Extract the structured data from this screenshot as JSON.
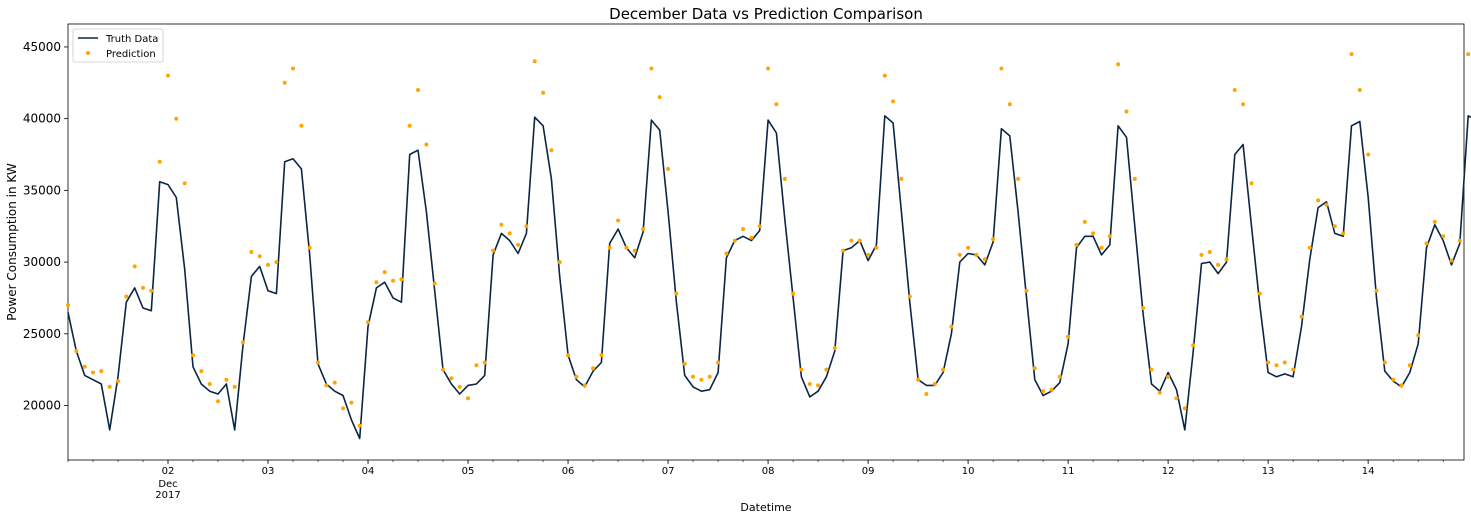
{
  "chart_data": {
    "type": "line",
    "title": "December Data vs Prediction Comparison",
    "xlabel": "Datetime",
    "ylabel": "Power Consumption in KW",
    "ylim": [
      16200,
      46600
    ],
    "xlim": [
      "2017-12-01 00:00",
      "2017-12-14 23:00"
    ],
    "y_ticks": [
      20000,
      25000,
      30000,
      35000,
      40000,
      45000
    ],
    "x_ticks": [
      {
        "value": "2017-12-02",
        "label": "02",
        "sub1": "Dec",
        "sub2": "2017"
      },
      {
        "value": "2017-12-03",
        "label": "03"
      },
      {
        "value": "2017-12-04",
        "label": "04"
      },
      {
        "value": "2017-12-05",
        "label": "05"
      },
      {
        "value": "2017-12-06",
        "label": "06"
      },
      {
        "value": "2017-12-07",
        "label": "07"
      },
      {
        "value": "2017-12-08",
        "label": "08"
      },
      {
        "value": "2017-12-09",
        "label": "09"
      },
      {
        "value": "2017-12-10",
        "label": "10"
      },
      {
        "value": "2017-12-11",
        "label": "11"
      },
      {
        "value": "2017-12-12",
        "label": "12"
      },
      {
        "value": "2017-12-13",
        "label": "13"
      },
      {
        "value": "2017-12-14",
        "label": "14"
      }
    ],
    "grid": false,
    "legend_position": "top-left",
    "series": [
      {
        "name": "Truth Data",
        "style": "line",
        "color": "#0b2545",
        "hour_step": 2,
        "start": "2017-12-01 00:00",
        "values": [
          [
            26500,
            23800,
            22100,
            21800,
            21500,
            18300,
            22000,
            27200,
            28200,
            26800,
            26600,
            35600,
            35400,
            34500,
            29500,
            22700,
            21500,
            21000,
            20800,
            21500,
            18300,
            24200,
            29000,
            29700,
            28000,
            27800,
            37000,
            37200,
            36500,
            30500,
            22900,
            21500,
            21000,
            20700,
            19000,
            17700,
            25500,
            28200,
            28600,
            27500,
            27200,
            37500,
            37800,
            33500,
            28000,
            22500,
            21500,
            20800,
            21400,
            21500,
            22100,
            30500,
            32000,
            31500,
            30600,
            32000,
            40100,
            39500,
            35800,
            29000,
            23500,
            21800,
            21300,
            22400,
            23000,
            31300,
            32300,
            31000,
            30300,
            32100,
            39900,
            39200,
            33500,
            27200,
            22100,
            21300,
            21000,
            21100,
            22300,
            30300,
            31500,
            31800,
            31500,
            32200,
            39900,
            39000,
            33000,
            27500,
            22000,
            20600,
            21000,
            22000,
            23800,
            30800,
            31000,
            31500,
            30100,
            31200,
            40200,
            39700,
            33500,
            27200,
            21800,
            21400,
            21400,
            22300,
            25000,
            30000,
            30600,
            30500,
            29800,
            31400,
            39300,
            38800,
            33500,
            27600,
            21800,
            20700,
            21000,
            21600,
            24300,
            31000,
            31800,
            31800,
            30500,
            31200,
            39500,
            38700,
            32500,
            26400,
            21500,
            21000,
            22300,
            21100,
            18300,
            23700,
            29900,
            30000,
            29200,
            30000,
            37500,
            38200,
            32500,
            27000,
            22300,
            22000,
            22200,
            22000,
            25500,
            30200,
            33800,
            34200,
            32000,
            31800,
            39500,
            39800,
            34500,
            27500,
            22400,
            21700,
            21300,
            22300,
            24300,
            31000,
            32600,
            31500,
            29800,
            31300,
            40200,
            39900,
            34800,
            27000,
            21300,
            20600,
            21300,
            22400,
            24500,
            29500,
            31500,
            32000,
            31200,
            31500,
            40600,
            40000,
            34800,
            26800,
            21600,
            21200,
            21700,
            22700,
            24500,
            29800,
            31800,
            31600,
            31100,
            31500,
            40300,
            40000,
            34500,
            27400
          ]
        ]
      },
      {
        "name": "Prediction",
        "style": "dots",
        "color": "#ffa500",
        "hour_step": 2,
        "start": "2017-12-01 00:00",
        "values": [
          [
            27000,
            23800,
            22700,
            22300,
            22400,
            21300,
            21700,
            27600,
            29700,
            28200,
            28000,
            37000,
            43000,
            40000,
            35500,
            23500,
            22400,
            21500,
            20300,
            21800,
            21300,
            24400,
            30700,
            30400,
            29800,
            30000,
            42500,
            43500,
            39500,
            31000,
            23000,
            21400,
            21600,
            19800,
            20200,
            18600,
            25800,
            28600,
            29300,
            28700,
            28800,
            39500,
            42000,
            38200,
            28500,
            22500,
            21900,
            21300,
            20500,
            22800,
            23000,
            30800,
            32600,
            32000,
            31200,
            32500,
            44000,
            41800,
            37800,
            30000,
            23500,
            22000,
            21400,
            22600,
            23500,
            31000,
            32900,
            31000,
            30800,
            32300,
            43500,
            41500,
            36500,
            27800,
            22900,
            22000,
            21800,
            22000,
            23000,
            30600,
            31500,
            32300,
            31700,
            32500,
            43500,
            41000,
            35800,
            27800,
            22500,
            21500,
            21400,
            22500,
            24000,
            30800,
            31500,
            31500,
            30500,
            31000,
            43000,
            41200,
            35800,
            27600,
            21800,
            20800,
            21500,
            22500,
            25500,
            30500,
            31000,
            30500,
            30200,
            31600,
            43500,
            41000,
            35800,
            28000,
            22600,
            21000,
            21100,
            22000,
            24800,
            31200,
            32800,
            32000,
            31000,
            31800,
            43800,
            40500,
            35800,
            26800,
            22500,
            20900,
            22000,
            20500,
            19800,
            24200,
            30500,
            30700,
            29800,
            30200,
            42000,
            41000,
            35500,
            27800,
            23000,
            22800,
            23000,
            22500,
            26200,
            31000,
            34300,
            34000,
            32500,
            32000,
            44500,
            42000,
            37500,
            28000,
            23000,
            21800,
            21400,
            22800,
            24900,
            31300,
            32800,
            31800,
            30100,
            31500,
            44500,
            42000,
            36500,
            27800,
            21600,
            20800,
            21600,
            23000,
            24800,
            30300,
            31700,
            32000,
            31000,
            31600,
            43500,
            41500,
            36500,
            27800,
            21900,
            21000,
            21800,
            23000,
            24600,
            30300,
            32100,
            31800,
            31400,
            31800,
            43500,
            41500,
            36000,
            29500
          ]
        ]
      }
    ]
  }
}
